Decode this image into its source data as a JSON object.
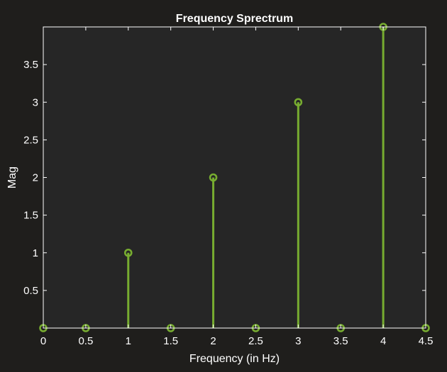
{
  "chart_data": {
    "type": "stem",
    "title": "Frequency Sprectrum",
    "xlabel": "Frequency (in Hz)",
    "ylabel": "Mag",
    "x": [
      0,
      0.5,
      1,
      1.5,
      2,
      2.5,
      3,
      3.5,
      4,
      4.5
    ],
    "values": [
      0,
      0,
      1,
      0,
      2,
      0,
      3,
      0,
      4,
      0
    ],
    "xlim": [
      0,
      4.5
    ],
    "ylim": [
      0,
      4
    ],
    "xticks": [
      "0",
      "0.5",
      "1",
      "1.5",
      "2",
      "2.5",
      "3",
      "3.5",
      "4",
      "4.5"
    ],
    "yticks": [
      "0.5",
      "1",
      "1.5",
      "2",
      "2.5",
      "3",
      "3.5"
    ],
    "colors": {
      "background": "#1f1e1c",
      "axes_background": "#262626",
      "axis": "#ffffff",
      "series": "#77ac30"
    }
  }
}
